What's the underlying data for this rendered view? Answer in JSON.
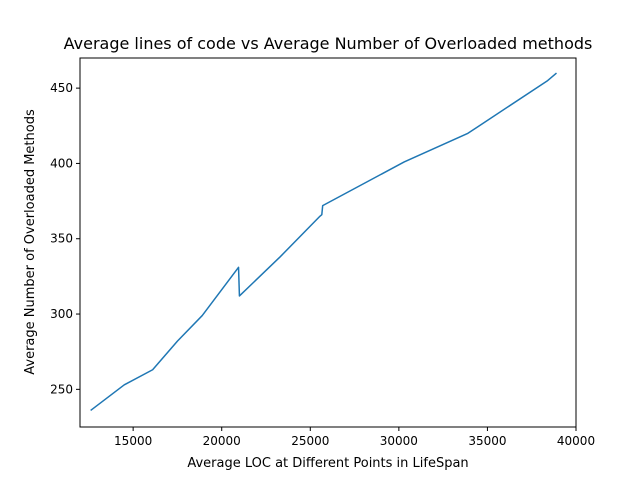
{
  "chart_data": {
    "type": "line",
    "title": "Average lines of code vs Average Number of Overloaded methods",
    "xlabel": "Average LOC at Different Points in LifeSpan",
    "ylabel": "Average Number of Overloaded Methods",
    "xlim": [
      12000,
      40000
    ],
    "ylim": [
      225,
      470
    ],
    "xticks": [
      15000,
      20000,
      25000,
      30000,
      35000,
      40000
    ],
    "yticks": [
      250,
      300,
      350,
      400,
      450
    ],
    "grid": false,
    "line_color": "#1f77b4",
    "series": [
      {
        "x": [
          12600,
          14500,
          16100,
          17500,
          18900,
          20950,
          21000,
          23300,
          25550,
          25650,
          25700,
          30300,
          33900,
          38400,
          38900
        ],
        "y": [
          236,
          253,
          263,
          282,
          299,
          331,
          312,
          338,
          365,
          366,
          372,
          401,
          420,
          455,
          460
        ]
      }
    ]
  }
}
